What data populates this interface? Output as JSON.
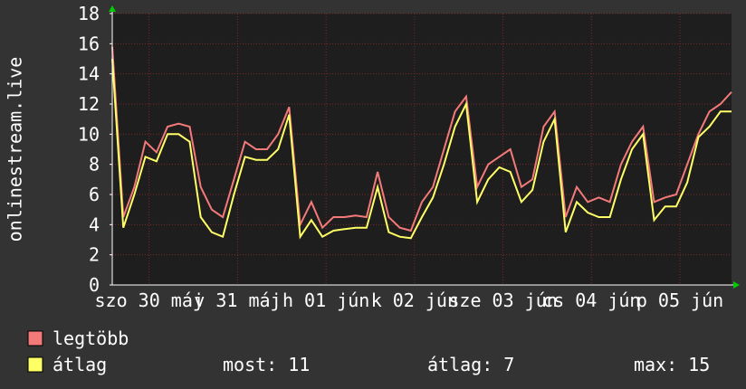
{
  "chart_data": {
    "type": "line",
    "y_label": "onlinestream.live",
    "xlim": [
      0,
      168
    ],
    "xticks": [
      {
        "value": 10,
        "label": "szo 30 máj"
      },
      {
        "value": 34,
        "label": "v 31 máj"
      },
      {
        "value": 58,
        "label": "h 01 jún"
      },
      {
        "value": 82,
        "label": "k 02 jún"
      },
      {
        "value": 106,
        "label": "sze 03 jún"
      },
      {
        "value": 130,
        "label": "cs 04 jún"
      },
      {
        "value": 154,
        "label": "p 05 jún"
      }
    ],
    "ylim": [
      0,
      18
    ],
    "yticks": [
      0,
      2,
      4,
      6,
      8,
      10,
      12,
      14,
      16,
      18
    ],
    "grid": true,
    "x": [
      0,
      3,
      6,
      9,
      12,
      15,
      18,
      21,
      24,
      27,
      30,
      33,
      36,
      39,
      42,
      45,
      48,
      51,
      54,
      57,
      60,
      63,
      66,
      69,
      72,
      75,
      78,
      81,
      84,
      87,
      90,
      93,
      96,
      99,
      102,
      105,
      108,
      111,
      114,
      117,
      120,
      123,
      126,
      129,
      132,
      135,
      138,
      141,
      144,
      147,
      150,
      153,
      156,
      159,
      162,
      165,
      168
    ],
    "series": [
      {
        "name": "legtöbb",
        "color": "#f47a7a",
        "values": [
          15.8,
          4.5,
          6.5,
          9.5,
          8.8,
          10.5,
          10.7,
          10.5,
          6.5,
          5,
          4.5,
          7,
          9.5,
          9,
          9,
          10,
          11.8,
          4,
          5.5,
          3.8,
          4.5,
          4.5,
          4.6,
          4.5,
          7.5,
          4.5,
          3.8,
          3.6,
          5.5,
          6.5,
          9,
          11.5,
          12.5,
          6.5,
          8,
          8.5,
          9,
          6.5,
          7,
          10.5,
          11.5,
          4.5,
          6.5,
          5.5,
          5.8,
          5.5,
          8,
          9.5,
          10.5,
          5.5,
          5.8,
          6,
          8,
          10,
          11.5,
          12,
          12.8
        ]
      },
      {
        "name": "átlag",
        "color": "#ffff66",
        "values": [
          15,
          3.8,
          6,
          8.5,
          8.2,
          10,
          10,
          9.5,
          4.5,
          3.5,
          3.2,
          6,
          8.5,
          8.3,
          8.3,
          9,
          11.3,
          3.2,
          4.3,
          3.2,
          3.6,
          3.7,
          3.8,
          3.8,
          6.5,
          3.5,
          3.2,
          3.1,
          4.5,
          5.8,
          8,
          10.5,
          12,
          5.5,
          7,
          7.8,
          7.5,
          5.5,
          6.3,
          9.5,
          11,
          3.5,
          5.5,
          4.8,
          4.5,
          4.5,
          7,
          9,
          10,
          4.3,
          5.2,
          5.2,
          6.8,
          9.8,
          10.5,
          11.5,
          11.5
        ]
      }
    ],
    "stats": [
      {
        "label": "most:",
        "value": 11
      },
      {
        "label": "átlag:",
        "value": 7
      },
      {
        "label": "max:",
        "value": 15
      }
    ]
  }
}
